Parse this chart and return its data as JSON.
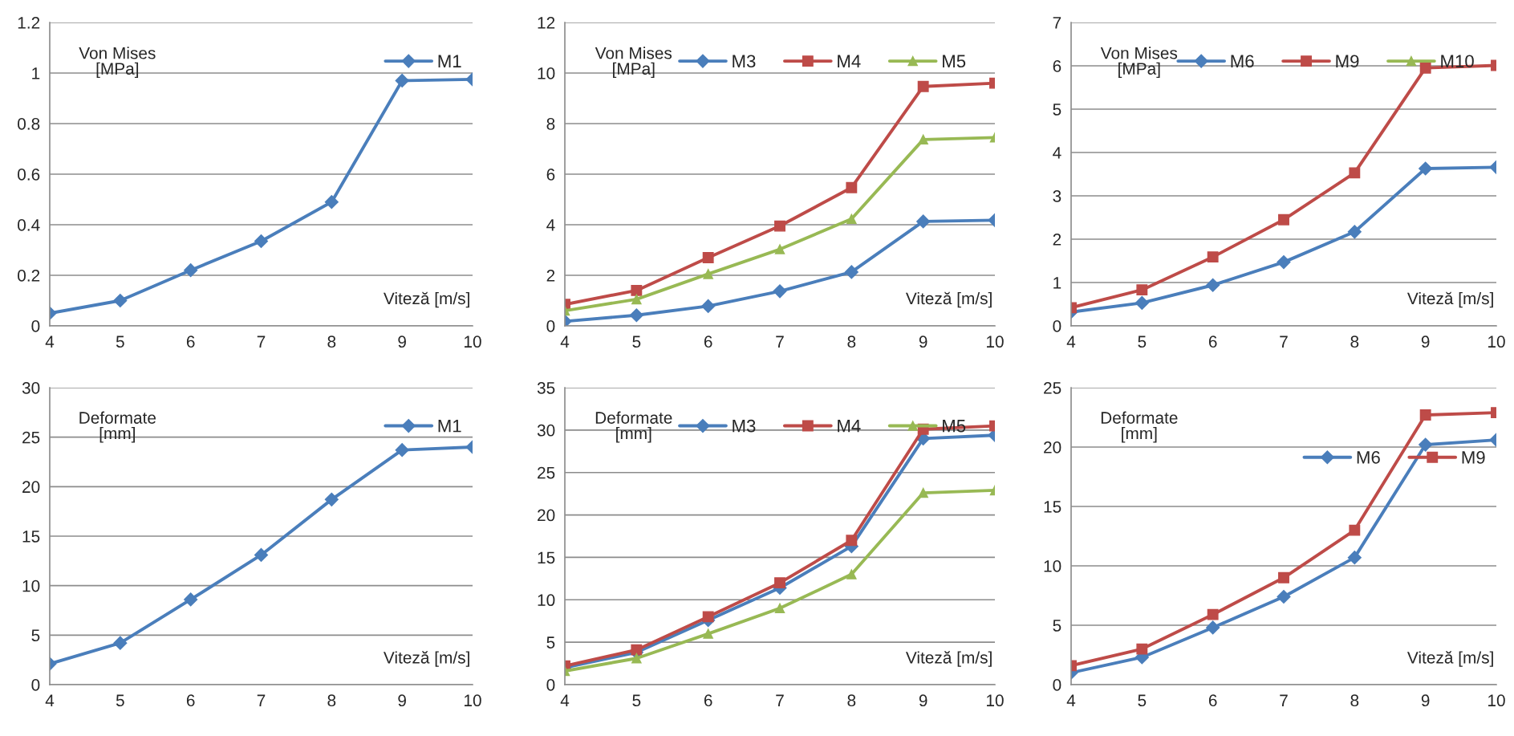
{
  "chart_data": [
    {
      "type": "line",
      "xlabel": "Viteză [m/s]",
      "ylabel": "Von Mises\n[MPa]",
      "x": [
        4,
        5,
        6,
        7,
        8,
        9,
        10
      ],
      "xlim": [
        4,
        10
      ],
      "xticks": [
        4,
        5,
        6,
        7,
        8,
        9,
        10
      ],
      "ylim": [
        0,
        1.2
      ],
      "yticks": [
        0,
        0.2,
        0.4,
        0.6,
        0.8,
        1,
        1.2
      ],
      "grid": "y",
      "legend": "top right",
      "series": [
        {
          "name": "M1",
          "color": "#4a7ebb",
          "marker": "diamond",
          "values": [
            0.05,
            0.1,
            0.22,
            0.335,
            0.49,
            0.97,
            0.975
          ]
        }
      ]
    },
    {
      "type": "line",
      "xlabel": "Viteză [m/s]",
      "ylabel": "Von Mises\n[MPa]",
      "x": [
        4,
        5,
        6,
        7,
        8,
        9,
        10
      ],
      "xlim": [
        4,
        10
      ],
      "xticks": [
        4,
        5,
        6,
        7,
        8,
        9,
        10
      ],
      "ylim": [
        0,
        12
      ],
      "yticks": [
        0,
        2,
        4,
        6,
        8,
        10,
        12
      ],
      "grid": "y",
      "legend": "top",
      "series": [
        {
          "name": "M3",
          "color": "#4a7ebb",
          "marker": "diamond",
          "values": [
            0.18,
            0.42,
            0.78,
            1.37,
            2.13,
            4.13,
            4.18
          ]
        },
        {
          "name": "M4",
          "color": "#be4b48",
          "marker": "square",
          "values": [
            0.85,
            1.4,
            2.7,
            3.95,
            5.47,
            9.47,
            9.6
          ]
        },
        {
          "name": "M5",
          "color": "#98b954",
          "marker": "triangle",
          "values": [
            0.6,
            1.05,
            2.05,
            3.03,
            4.23,
            7.37,
            7.45
          ]
        }
      ]
    },
    {
      "type": "line",
      "xlabel": "Viteză [m/s]",
      "ylabel": "Von Mises\n[MPa]",
      "x": [
        4,
        5,
        6,
        7,
        8,
        9,
        10
      ],
      "xlim": [
        4,
        10
      ],
      "xticks": [
        4,
        5,
        6,
        7,
        8,
        9,
        10
      ],
      "ylim": [
        0,
        7
      ],
      "yticks": [
        0,
        1,
        2,
        3,
        4,
        5,
        6,
        7
      ],
      "grid": "y",
      "legend": "top",
      "series": [
        {
          "name": "M6",
          "color": "#4a7ebb",
          "marker": "diamond",
          "values": [
            0.32,
            0.53,
            0.94,
            1.47,
            2.17,
            3.63,
            3.66
          ]
        },
        {
          "name": "M9",
          "color": "#be4b48",
          "marker": "square",
          "values": [
            0.42,
            0.83,
            1.59,
            2.45,
            3.53,
            5.95,
            6.01
          ]
        },
        {
          "name": "M10",
          "color": "#98b954",
          "marker": "triangle",
          "values": [
            null,
            null,
            null,
            null,
            null,
            null,
            null
          ]
        }
      ]
    },
    {
      "type": "line",
      "xlabel": "Viteză [m/s]",
      "ylabel": "Deformate\n[mm]",
      "x": [
        4,
        5,
        6,
        7,
        8,
        9,
        10
      ],
      "xlim": [
        4,
        10
      ],
      "xticks": [
        4,
        5,
        6,
        7,
        8,
        9,
        10
      ],
      "ylim": [
        0,
        30
      ],
      "yticks": [
        0,
        5,
        10,
        15,
        20,
        25,
        30
      ],
      "grid": "y",
      "legend": "top right",
      "series": [
        {
          "name": "M1",
          "color": "#4a7ebb",
          "marker": "diamond",
          "values": [
            2.1,
            4.2,
            8.6,
            13.1,
            18.7,
            23.7,
            24.0
          ]
        }
      ]
    },
    {
      "type": "line",
      "xlabel": "Viteză [m/s]",
      "ylabel": "Deformate\n[mm]",
      "x": [
        4,
        5,
        6,
        7,
        8,
        9,
        10
      ],
      "xlim": [
        4,
        10
      ],
      "xticks": [
        4,
        5,
        6,
        7,
        8,
        9,
        10
      ],
      "ylim": [
        0,
        35
      ],
      "yticks": [
        0,
        5,
        10,
        15,
        20,
        25,
        30,
        35
      ],
      "grid": "y",
      "legend": "top",
      "series": [
        {
          "name": "M3",
          "color": "#4a7ebb",
          "marker": "diamond",
          "values": [
            2.0,
            3.8,
            7.6,
            11.4,
            16.3,
            29.0,
            29.4
          ]
        },
        {
          "name": "M4",
          "color": "#be4b48",
          "marker": "square",
          "values": [
            2.2,
            4.1,
            8.0,
            12.0,
            17.0,
            30.1,
            30.5
          ]
        },
        {
          "name": "M5",
          "color": "#98b954",
          "marker": "triangle",
          "values": [
            1.6,
            3.1,
            6.0,
            9.0,
            13.0,
            22.6,
            22.9
          ]
        }
      ]
    },
    {
      "type": "line",
      "xlabel": "Viteză [m/s]",
      "ylabel": "Deformate\n[mm]",
      "x": [
        4,
        5,
        6,
        7,
        8,
        9,
        10
      ],
      "xlim": [
        4,
        10
      ],
      "xticks": [
        4,
        5,
        6,
        7,
        8,
        9,
        10
      ],
      "ylim": [
        0,
        25
      ],
      "yticks": [
        0,
        5,
        10,
        15,
        20,
        25
      ],
      "grid": "y",
      "legend": "right",
      "series": [
        {
          "name": "M6",
          "color": "#4a7ebb",
          "marker": "diamond",
          "values": [
            1.0,
            2.3,
            4.8,
            7.4,
            10.7,
            20.2,
            20.6
          ]
        },
        {
          "name": "M9",
          "color": "#be4b48",
          "marker": "square",
          "values": [
            1.6,
            3.0,
            5.9,
            9.0,
            13.0,
            22.7,
            22.9
          ]
        }
      ]
    }
  ]
}
